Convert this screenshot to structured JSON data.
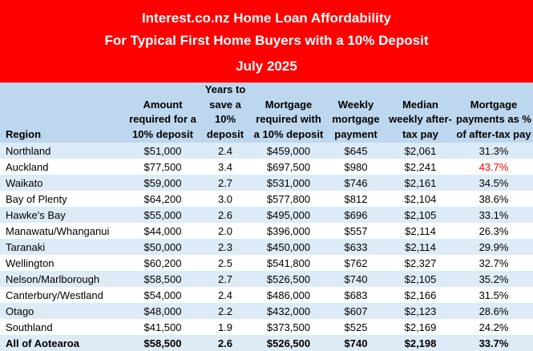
{
  "banner": {
    "line1": "Interest.co.nz Home Loan Affordability",
    "line2": "For Typical First Home Buyers with a 10% Deposit",
    "line3": "July 2025"
  },
  "table": {
    "headers": [
      [
        "Region"
      ],
      [
        "Amount",
        "required for a",
        "10% deposit"
      ],
      [
        "Years to",
        "save a 10%",
        "deposit"
      ],
      [
        "Mortgage",
        "required with",
        "a 10% deposit"
      ],
      [
        "Weekly",
        "mortgage",
        "payment"
      ],
      [
        "Median",
        "weekly after-",
        "tax pay"
      ],
      [
        "Mortgage",
        "payments as %",
        "of after-tax pay"
      ]
    ],
    "rows": [
      [
        "Northland",
        "$51,000",
        "2.4",
        "$459,000",
        "$645",
        "$2,061",
        "31.3%"
      ],
      [
        "Auckland",
        "$77,500",
        "3.4",
        "$697,500",
        "$980",
        "$2,241",
        "43.7%"
      ],
      [
        "Waikato",
        "$59,000",
        "2.7",
        "$531,000",
        "$746",
        "$2,161",
        "34.5%"
      ],
      [
        "Bay of Plenty",
        "$64,200",
        "3.0",
        "$577,800",
        "$812",
        "$2,104",
        "38.6%"
      ],
      [
        "Hawke's Bay",
        "$55,000",
        "2.6",
        "$495,000",
        "$696",
        "$2,105",
        "33.1%"
      ],
      [
        "Manawatu/Whanganui",
        "$44,000",
        "2.0",
        "$396,000",
        "$557",
        "$2,114",
        "26.3%"
      ],
      [
        "Taranaki",
        "$50,000",
        "2.3",
        "$450,000",
        "$633",
        "$2,114",
        "29.9%"
      ],
      [
        "Wellington",
        "$60,200",
        "2.5",
        "$541,800",
        "$762",
        "$2,327",
        "32.7%"
      ],
      [
        "Nelson/Marlborough",
        "$58,500",
        "2.7",
        "$526,500",
        "$740",
        "$2,105",
        "35.2%"
      ],
      [
        "Canterbury/Westland",
        "$54,000",
        "2.4",
        "$486,000",
        "$683",
        "$2,166",
        "31.5%"
      ],
      [
        "Otago",
        "$48,000",
        "2.2",
        "$432,000",
        "$607",
        "$2,123",
        "28.6%"
      ],
      [
        "Southland",
        "$41,500",
        "1.9",
        "$373,500",
        "$525",
        "$2,169",
        "24.2%"
      ]
    ],
    "total": [
      "All of Aotearoa",
      "$58,500",
      "2.6",
      "$526,500",
      "$740",
      "$2,198",
      "33.7%"
    ]
  },
  "colors": {
    "banner": "#ff0000",
    "header": "#bdd7ee",
    "row_alt": "#ddebf7",
    "highlight_text": "#ff0000"
  }
}
